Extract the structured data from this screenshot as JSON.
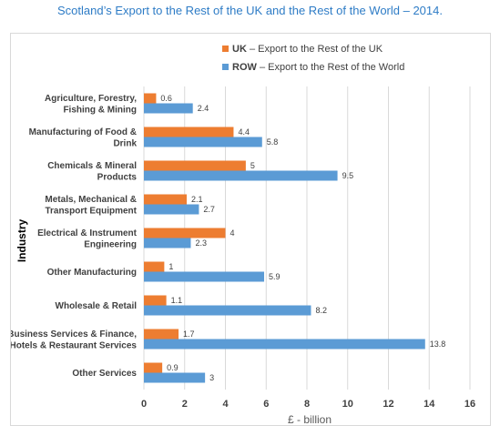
{
  "page": {
    "title": "Scotland’s Export to the Rest of the UK and the Rest of the World – 2014."
  },
  "chart_data": {
    "type": "bar",
    "orientation": "horizontal",
    "title": "",
    "xlabel": "£ - billion",
    "ylabel": "Industry",
    "xlim": [
      0,
      16
    ],
    "x_ticks": [
      0,
      2,
      4,
      6,
      8,
      10,
      12,
      14,
      16
    ],
    "grid": true,
    "legend_position": "top",
    "categories": [
      [
        "Agriculture, Forestry,",
        "Fishing & Mining"
      ],
      [
        "Manufacturing of Food &",
        "Drink"
      ],
      [
        "Chemicals & Mineral",
        "Products"
      ],
      [
        "Metals, Mechanical &",
        "Transport Equipment"
      ],
      [
        "Electrical & Instrument",
        "Engineering"
      ],
      [
        "Other Manufacturing"
      ],
      [
        "Wholesale & Retail"
      ],
      [
        "Business Services & Finance,",
        "Hotels & Restaurant Services"
      ],
      [
        "Other Services"
      ]
    ],
    "series": [
      {
        "code": "UK",
        "desc": " – Export to the Rest of the UK",
        "color": "#ed7d31",
        "values": [
          0.6,
          4.4,
          5,
          2.1,
          4,
          1,
          1.1,
          1.7,
          0.9
        ]
      },
      {
        "code": "ROW",
        "desc": " – Export to the Rest of the World",
        "color": "#5b9bd5",
        "values": [
          2.4,
          5.8,
          9.5,
          2.7,
          2.3,
          5.9,
          8.2,
          13.8,
          3
        ]
      }
    ]
  }
}
